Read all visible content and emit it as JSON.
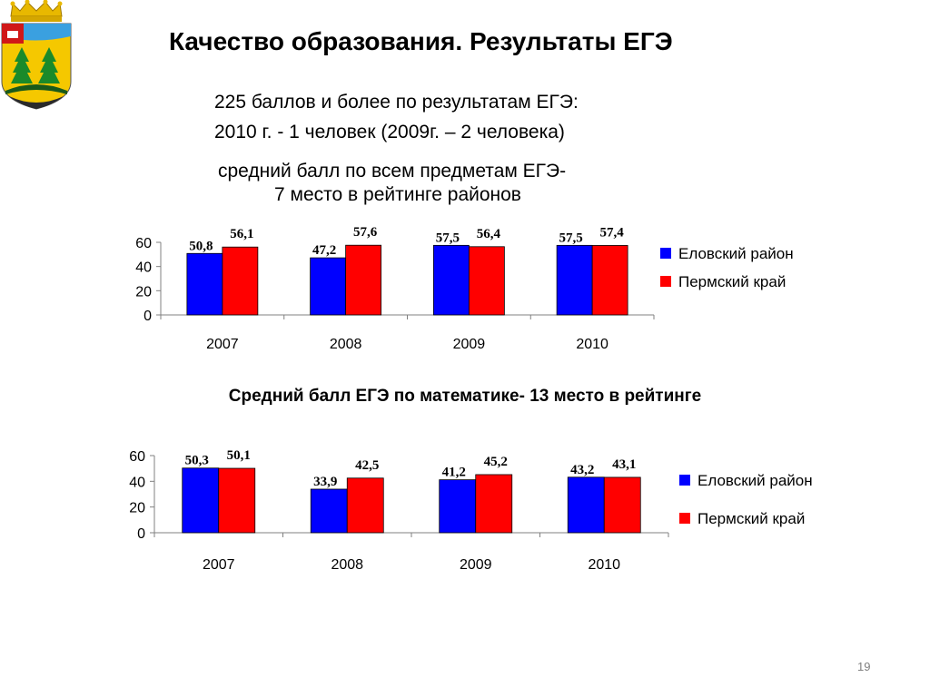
{
  "title": "Качество образования.  Результаты ЕГЭ",
  "subtitle_lines": [
    "225 баллов и более по результатам ЕГЭ:",
    "2010 г. - 1 человек (2009г. – 2 человека)",
    "средний балл по всем предметам ЕГЭ-",
    "7 место в рейтинге районов"
  ],
  "page_number": "19",
  "colors": {
    "series_1": "#0000ff",
    "series_2": "#ff0000",
    "axis": "#808080"
  },
  "chart_data": [
    {
      "type": "bar",
      "title": "",
      "categories": [
        "2007",
        "2008",
        "2009",
        "2010"
      ],
      "series": [
        {
          "name": "Еловский район",
          "values": [
            50.8,
            47.2,
            57.5,
            57.5
          ],
          "labels": [
            "50,8",
            "47,2",
            "57,5",
            "57,5"
          ]
        },
        {
          "name": "Пермский край",
          "values": [
            56.1,
            57.6,
            56.4,
            57.4
          ],
          "labels": [
            "56,1",
            "57,6",
            "56,4",
            "57,4"
          ]
        }
      ],
      "y_ticks": [
        "0",
        "20",
        "40",
        "60"
      ],
      "ylim": [
        0,
        60
      ],
      "legend": "right",
      "grid": false
    },
    {
      "type": "bar",
      "title": "Cредний балл ЕГЭ по математике- 13 место в рейтинге",
      "categories": [
        "2007",
        "2008",
        "2009",
        "2010"
      ],
      "series": [
        {
          "name": "Еловский район",
          "values": [
            50.3,
            33.9,
            41.2,
            43.2
          ],
          "labels": [
            "50,3",
            "33,9",
            "41,2",
            "43,2"
          ]
        },
        {
          "name": "Пермский край",
          "values": [
            50.1,
            42.5,
            45.2,
            43.1
          ],
          "labels": [
            "50,1",
            "42,5",
            "45,2",
            "43,1"
          ]
        }
      ],
      "y_ticks": [
        "0",
        "20",
        "40",
        "60"
      ],
      "ylim": [
        0,
        60
      ],
      "legend": "right",
      "grid": false
    }
  ]
}
